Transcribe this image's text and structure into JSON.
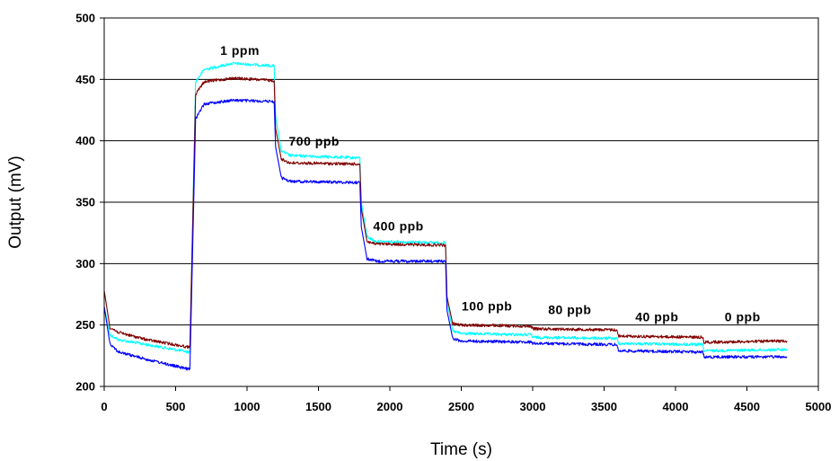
{
  "chart_data": {
    "type": "line",
    "title": "",
    "xlabel": "Time (s)",
    "ylabel": "Output (mV)",
    "xlim": [
      0,
      5000
    ],
    "ylim": [
      200,
      500
    ],
    "xticks": [
      0,
      500,
      1000,
      1500,
      2000,
      2500,
      3000,
      3500,
      4000,
      4500,
      5000
    ],
    "yticks": [
      200,
      250,
      300,
      350,
      400,
      450,
      500
    ],
    "grid": "horizontal",
    "legend": "none",
    "annotations": [
      {
        "text": "1 ppm",
        "x": 950,
        "y": 470
      },
      {
        "text": "700 ppb",
        "x": 1470,
        "y": 396
      },
      {
        "text": "400 ppb",
        "x": 2060,
        "y": 327
      },
      {
        "text": "100 ppb",
        "x": 2680,
        "y": 262
      },
      {
        "text": "80 ppb",
        "x": 3260,
        "y": 259
      },
      {
        "text": "40 ppb",
        "x": 3870,
        "y": 253
      },
      {
        "text": "0 ppb",
        "x": 4470,
        "y": 253
      }
    ],
    "series": [
      {
        "color": "#00ffff",
        "x": [
          0,
          40,
          100,
          300,
          590,
          600,
          640,
          700,
          900,
          1190,
          1200,
          1240,
          1300,
          1790,
          1800,
          1840,
          1900,
          2390,
          2400,
          2440,
          2500,
          2990,
          3000,
          3590,
          3600,
          4190,
          4200,
          4780
        ],
        "y": [
          265,
          242,
          238,
          234,
          228,
          228,
          448,
          458,
          463,
          461,
          420,
          392,
          388,
          386,
          350,
          322,
          318,
          317,
          270,
          245,
          243,
          242,
          240,
          239,
          235,
          234,
          229,
          230
        ]
      },
      {
        "color": "#800000",
        "x": [
          0,
          40,
          100,
          300,
          590,
          600,
          640,
          700,
          900,
          1190,
          1200,
          1240,
          1300,
          1790,
          1800,
          1840,
          1900,
          2390,
          2400,
          2440,
          2500,
          2990,
          3000,
          3590,
          3600,
          4190,
          4200,
          4780
        ],
        "y": [
          278,
          248,
          244,
          238,
          232,
          232,
          438,
          448,
          451,
          449,
          410,
          385,
          382,
          381,
          345,
          318,
          316,
          315,
          273,
          251,
          250,
          249,
          247,
          246,
          241,
          240,
          236,
          237
        ]
      },
      {
        "color": "#0000ff",
        "x": [
          0,
          40,
          100,
          300,
          590,
          600,
          640,
          700,
          900,
          1190,
          1200,
          1240,
          1300,
          1790,
          1800,
          1840,
          1900,
          2390,
          2400,
          2440,
          2500,
          2990,
          3000,
          3590,
          3600,
          4190,
          4200,
          4780
        ],
        "y": [
          265,
          235,
          228,
          222,
          214,
          214,
          418,
          430,
          433,
          432,
          395,
          370,
          367,
          366,
          330,
          304,
          302,
          302,
          262,
          239,
          237,
          236,
          235,
          234,
          229,
          228,
          224,
          224
        ]
      }
    ]
  }
}
